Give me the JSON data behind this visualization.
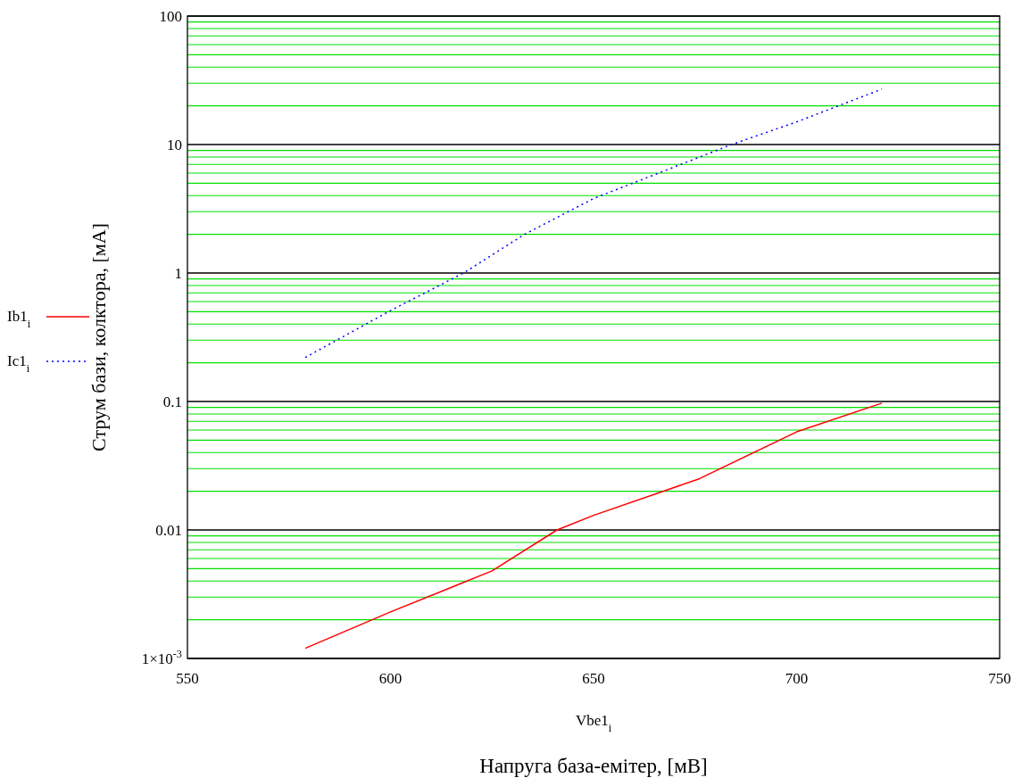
{
  "chart_data": {
    "type": "line",
    "xlabel": "Vbe1$_{i}$",
    "ylabel": "Струм бази, колктора, [мА]",
    "annotations": [
      "Напруга база-емітер, [мВ]"
    ],
    "log": "y",
    "grid": "y",
    "legend": "left",
    "xlim": [
      550,
      750
    ],
    "xticks": [
      550,
      600,
      650,
      700,
      750
    ],
    "ylim": [
      0.001,
      100
    ],
    "yticks": [
      {
        "value": 0.001,
        "label": "1×10$^{-3}$"
      },
      {
        "value": 0.002,
        "label": null
      },
      {
        "value": 0.003,
        "label": null
      },
      {
        "value": 0.004,
        "label": null
      },
      {
        "value": 0.005,
        "label": null
      },
      {
        "value": 0.006,
        "label": null
      },
      {
        "value": 0.007,
        "label": null
      },
      {
        "value": 0.008,
        "label": null
      },
      {
        "value": 0.009,
        "label": null
      },
      0.01,
      {
        "value": 0.02,
        "label": null
      },
      {
        "value": 0.03,
        "label": null
      },
      {
        "value": 0.04,
        "label": null
      },
      {
        "value": 0.05,
        "label": null
      },
      {
        "value": 0.06,
        "label": null
      },
      {
        "value": 0.07,
        "label": null
      },
      {
        "value": 0.08,
        "label": null
      },
      {
        "value": 0.09,
        "label": null
      },
      0.1,
      {
        "value": 0.2,
        "label": null
      },
      {
        "value": 0.3,
        "label": null
      },
      {
        "value": 0.4,
        "label": null
      },
      {
        "value": 0.5,
        "label": null
      },
      {
        "value": 0.6,
        "label": null
      },
      {
        "value": 0.7,
        "label": null
      },
      {
        "value": 0.8,
        "label": null
      },
      {
        "value": 0.9,
        "label": null
      },
      1,
      {
        "value": 2,
        "label": null
      },
      {
        "value": 3,
        "label": null
      },
      {
        "value": 4,
        "label": null
      },
      {
        "value": 5,
        "label": null
      },
      {
        "value": 6,
        "label": null
      },
      {
        "value": 7,
        "label": null
      },
      {
        "value": 8,
        "label": null
      },
      {
        "value": 9,
        "label": null
      },
      10,
      {
        "value": 20,
        "label": null
      },
      {
        "value": 30,
        "label": null
      },
      {
        "value": 40,
        "label": null
      },
      {
        "value": 50,
        "label": null
      },
      {
        "value": 60,
        "label": null
      },
      {
        "value": 70,
        "label": null
      },
      {
        "value": 80,
        "label": null
      },
      {
        "value": 90,
        "label": null
      },
      100
    ],
    "series": [
      {
        "name": "Ib1$_{i}$",
        "color": "#ff0000",
        "line_style": "solid",
        "x": [
          579,
          600,
          625,
          641,
          650,
          676,
          700,
          721
        ],
        "values": [
          0.0012,
          0.0023,
          0.0048,
          0.01,
          0.013,
          0.025,
          0.058,
          0.097
        ]
      },
      {
        "name": "Ic1$_{i}$",
        "color": "#0000ff",
        "line_style": "dotted",
        "x": [
          579,
          600,
          618,
          633,
          650,
          684,
          700,
          721
        ],
        "values": [
          0.22,
          0.51,
          1,
          2,
          3.8,
          10,
          15,
          27
        ]
      }
    ]
  }
}
